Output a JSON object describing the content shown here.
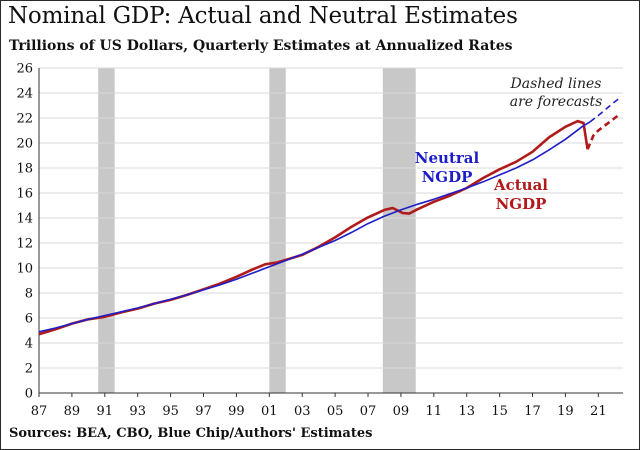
{
  "chart_data": {
    "type": "line",
    "title": "Nominal GDP: Actual and Neutral Estimates",
    "subtitle": "Trillions of US Dollars, Quarterly Estimates at Annualized Rates",
    "source": "Sources: BEA, CBO, Blue Chip/Authors' Estimates",
    "xlabel": "",
    "ylabel": "",
    "xlim": [
      1987,
      2022.5
    ],
    "ylim": [
      0,
      26
    ],
    "y_ticks": [
      0,
      2,
      4,
      6,
      8,
      10,
      12,
      14,
      16,
      18,
      20,
      22,
      24,
      26
    ],
    "x_ticks": [
      {
        "year": 1987,
        "label": "87"
      },
      {
        "year": 1989,
        "label": "89"
      },
      {
        "year": 1991,
        "label": "91"
      },
      {
        "year": 1993,
        "label": "93"
      },
      {
        "year": 1995,
        "label": "95"
      },
      {
        "year": 1997,
        "label": "97"
      },
      {
        "year": 1999,
        "label": "99"
      },
      {
        "year": 2001,
        "label": "01"
      },
      {
        "year": 2003,
        "label": "03"
      },
      {
        "year": 2005,
        "label": "05"
      },
      {
        "year": 2007,
        "label": "07"
      },
      {
        "year": 2009,
        "label": "09"
      },
      {
        "year": 2011,
        "label": "11"
      },
      {
        "year": 2013,
        "label": "13"
      },
      {
        "year": 2015,
        "label": "15"
      },
      {
        "year": 2017,
        "label": "17"
      },
      {
        "year": 2019,
        "label": "19"
      },
      {
        "year": 2021,
        "label": "21"
      }
    ],
    "grid": "horizontal",
    "recessions": [
      [
        1990.6,
        1991.6
      ],
      [
        2001.0,
        2002.0
      ],
      [
        2007.9,
        2009.9
      ]
    ],
    "series": [
      {
        "key": "neutral",
        "color": "#1e1ec8",
        "points": [
          [
            1987,
            4.9
          ],
          [
            1988,
            5.2
          ],
          [
            1989,
            5.55
          ],
          [
            1990,
            5.9
          ],
          [
            1991,
            6.2
          ],
          [
            1992,
            6.5
          ],
          [
            1993,
            6.8
          ],
          [
            1994,
            7.15
          ],
          [
            1995,
            7.5
          ],
          [
            1996,
            7.85
          ],
          [
            1997,
            8.25
          ],
          [
            1998,
            8.65
          ],
          [
            1999,
            9.1
          ],
          [
            2000,
            9.6
          ],
          [
            2001,
            10.1
          ],
          [
            2002,
            10.6
          ],
          [
            2003,
            11.1
          ],
          [
            2004,
            11.65
          ],
          [
            2005,
            12.2
          ],
          [
            2006,
            12.85
          ],
          [
            2007,
            13.55
          ],
          [
            2008,
            14.15
          ],
          [
            2009,
            14.65
          ],
          [
            2010,
            15.1
          ],
          [
            2011,
            15.5
          ],
          [
            2012,
            15.95
          ],
          [
            2013,
            16.4
          ],
          [
            2014,
            16.9
          ],
          [
            2015,
            17.45
          ],
          [
            2016,
            18.0
          ],
          [
            2017,
            18.65
          ],
          [
            2018,
            19.45
          ],
          [
            2019,
            20.3
          ],
          [
            2020,
            21.3
          ],
          [
            2020.5,
            21.7
          ]
        ],
        "forecast": [
          [
            2020.5,
            21.7
          ],
          [
            2021,
            22.2
          ],
          [
            2021.5,
            22.75
          ],
          [
            2022,
            23.3
          ],
          [
            2022.3,
            23.6
          ]
        ]
      },
      {
        "key": "actual",
        "color": "#b01a1a",
        "points": [
          [
            1987,
            4.7
          ],
          [
            1988,
            5.1
          ],
          [
            1989,
            5.55
          ],
          [
            1990,
            5.9
          ],
          [
            1991,
            6.1
          ],
          [
            1992,
            6.45
          ],
          [
            1993,
            6.75
          ],
          [
            1994,
            7.15
          ],
          [
            1995,
            7.45
          ],
          [
            1996,
            7.85
          ],
          [
            1997,
            8.3
          ],
          [
            1998,
            8.75
          ],
          [
            1999,
            9.3
          ],
          [
            2000,
            9.9
          ],
          [
            2000.75,
            10.3
          ],
          [
            2001.5,
            10.45
          ],
          [
            2002,
            10.65
          ],
          [
            2003,
            11.05
          ],
          [
            2004,
            11.7
          ],
          [
            2005,
            12.45
          ],
          [
            2006,
            13.3
          ],
          [
            2007,
            14.05
          ],
          [
            2008,
            14.65
          ],
          [
            2008.5,
            14.8
          ],
          [
            2009.1,
            14.4
          ],
          [
            2009.5,
            14.35
          ],
          [
            2010,
            14.7
          ],
          [
            2011,
            15.3
          ],
          [
            2012,
            15.8
          ],
          [
            2013,
            16.4
          ],
          [
            2014,
            17.2
          ],
          [
            2015,
            17.9
          ],
          [
            2016,
            18.5
          ],
          [
            2017,
            19.3
          ],
          [
            2018,
            20.45
          ],
          [
            2019,
            21.3
          ],
          [
            2019.75,
            21.75
          ],
          [
            2020.1,
            21.6
          ],
          [
            2020.35,
            19.5
          ]
        ],
        "forecast": [
          [
            2020.35,
            19.5
          ],
          [
            2020.7,
            20.6
          ],
          [
            2021,
            21.0
          ],
          [
            2021.5,
            21.5
          ],
          [
            2022,
            22.0
          ],
          [
            2022.3,
            22.3
          ]
        ]
      }
    ],
    "annotations": {
      "neutral_line1": "Neutral",
      "neutral_line2": "NGDP",
      "actual_line1": "Actual",
      "actual_line2": "NGDP",
      "forecast_line1": "Dashed lines",
      "forecast_line2": "are forecasts"
    }
  }
}
